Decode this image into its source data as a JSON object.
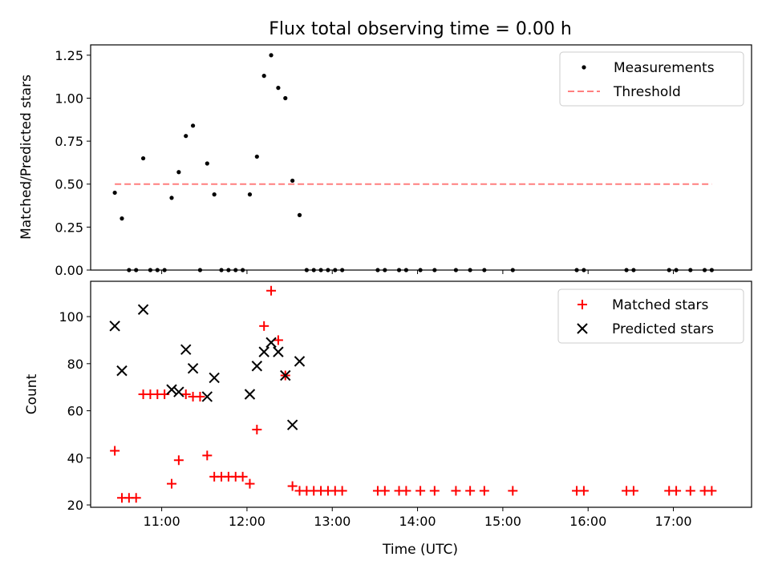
{
  "chart_data": [
    {
      "type": "scatter",
      "title": "Flux total observing time = 0.00 h",
      "ylabel": "Matched/Predicted stars",
      "ylim": [
        0.0,
        1.31
      ],
      "yticks": [
        0.0,
        0.25,
        0.5,
        0.75,
        1.0,
        1.25
      ],
      "ytick_labels": [
        "0.00",
        "0.25",
        "0.50",
        "0.75",
        "1.00",
        "1.25"
      ],
      "xlim": [
        "10:10",
        "17:55"
      ],
      "xticks": [
        "11:00",
        "12:00",
        "13:00",
        "14:00",
        "15:00",
        "16:00",
        "17:00"
      ],
      "show_xtick_labels": false,
      "legend_position": "top-right",
      "series": [
        {
          "name": "Measurements",
          "marker": "dot",
          "color": "#000000",
          "x": [
            "10:27",
            "10:32",
            "10:37",
            "10:42",
            "10:47",
            "10:52",
            "10:57",
            "11:02",
            "11:07",
            "11:12",
            "11:17",
            "11:22",
            "11:27",
            "11:32",
            "11:37",
            "11:42",
            "11:47",
            "11:52",
            "11:57",
            "12:02",
            "12:07",
            "12:12",
            "12:17",
            "12:22",
            "12:27",
            "12:32",
            "12:37",
            "12:42",
            "12:47",
            "12:52",
            "12:57",
            "13:02",
            "13:07",
            "13:32",
            "13:37",
            "13:47",
            "13:52",
            "14:02",
            "14:12",
            "14:27",
            "14:37",
            "14:47",
            "15:07",
            "15:52",
            "15:57",
            "16:27",
            "16:32",
            "16:57",
            "17:02",
            "17:12",
            "17:22",
            "17:27"
          ],
          "y": [
            0.45,
            0.3,
            0,
            0,
            0.65,
            0,
            0,
            0,
            0.42,
            0.57,
            0.78,
            0.84,
            0,
            0.62,
            0.44,
            0,
            0,
            0,
            0,
            0.44,
            0.66,
            1.13,
            1.25,
            1.06,
            1.0,
            0.52,
            0.32,
            0,
            0,
            0,
            0,
            0,
            0,
            0,
            0,
            0,
            0,
            0,
            0,
            0,
            0,
            0,
            0,
            0,
            0,
            0,
            0,
            0,
            0,
            0,
            0,
            0
          ]
        },
        {
          "name": "Threshold",
          "type": "line",
          "style": "dashed",
          "color": "#ff7f7f",
          "x": [
            "10:27",
            "17:27"
          ],
          "y": [
            0.5,
            0.5
          ]
        }
      ]
    },
    {
      "type": "scatter",
      "xlabel": "Time (UTC)",
      "ylabel": "Count",
      "ylim": [
        19,
        115
      ],
      "yticks": [
        20,
        40,
        60,
        80,
        100
      ],
      "xlim": [
        "10:10",
        "17:55"
      ],
      "xticks": [
        "11:00",
        "12:00",
        "13:00",
        "14:00",
        "15:00",
        "16:00",
        "17:00"
      ],
      "legend_position": "top-right",
      "series": [
        {
          "name": "Matched stars",
          "marker": "plus",
          "color": "#ff0000",
          "x": [
            "10:27",
            "10:32",
            "10:37",
            "10:42",
            "10:47",
            "10:52",
            "10:57",
            "11:02",
            "11:07",
            "11:12",
            "11:17",
            "11:22",
            "11:27",
            "11:32",
            "11:37",
            "11:42",
            "11:47",
            "11:52",
            "11:57",
            "12:02",
            "12:07",
            "12:12",
            "12:17",
            "12:22",
            "12:27",
            "12:32",
            "12:37",
            "12:42",
            "12:47",
            "12:52",
            "12:57",
            "13:02",
            "13:07",
            "13:32",
            "13:37",
            "13:47",
            "13:52",
            "14:02",
            "14:12",
            "14:27",
            "14:37",
            "14:47",
            "15:07",
            "15:52",
            "15:57",
            "16:27",
            "16:32",
            "16:57",
            "17:02",
            "17:12",
            "17:22",
            "17:27"
          ],
          "y": [
            43,
            23,
            23,
            23,
            67,
            67,
            67,
            67,
            29,
            39,
            67,
            66,
            66,
            41,
            32,
            32,
            32,
            32,
            32,
            29,
            52,
            96,
            111,
            90,
            75,
            28,
            26,
            26,
            26,
            26,
            26,
            26,
            26,
            26,
            26,
            26,
            26,
            26,
            26,
            26,
            26,
            26,
            26,
            26,
            26,
            26,
            26,
            26,
            26,
            26,
            26,
            26
          ]
        },
        {
          "name": "Predicted stars",
          "marker": "x",
          "color": "#000000",
          "x": [
            "10:27",
            "10:32",
            "10:47",
            "11:07",
            "11:12",
            "11:17",
            "11:22",
            "11:32",
            "11:37",
            "12:02",
            "12:07",
            "12:12",
            "12:17",
            "12:22",
            "12:27",
            "12:32",
            "12:37"
          ],
          "y": [
            96,
            77,
            103,
            69,
            68,
            86,
            78,
            66,
            74,
            67,
            79,
            85,
            89,
            85,
            75,
            54,
            81
          ]
        }
      ]
    }
  ]
}
